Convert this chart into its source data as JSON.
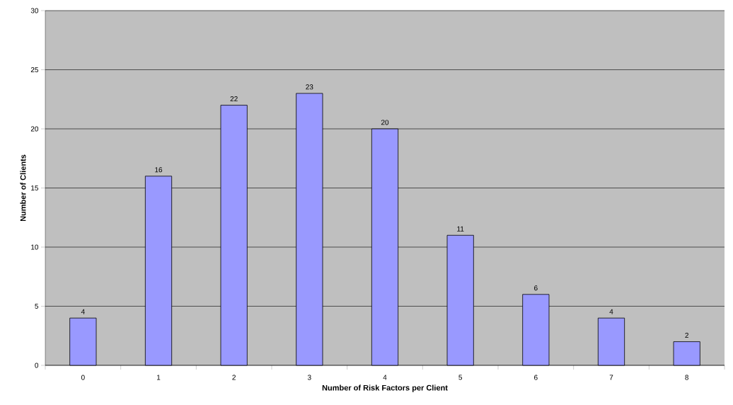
{
  "chart_data": {
    "type": "bar",
    "xlabel": "Number of Risk Factors per Client",
    "ylabel": "Number of Clients",
    "categories": [
      "0",
      "1",
      "2",
      "3",
      "4",
      "5",
      "6",
      "7",
      "8"
    ],
    "values": [
      4,
      16,
      22,
      23,
      20,
      11,
      6,
      4,
      2
    ],
    "color": "#9999ff",
    "ylim": [
      0,
      30
    ],
    "yticks": [
      0,
      5,
      10,
      15,
      20,
      25,
      30
    ],
    "grid": "y",
    "data_labels": true
  }
}
